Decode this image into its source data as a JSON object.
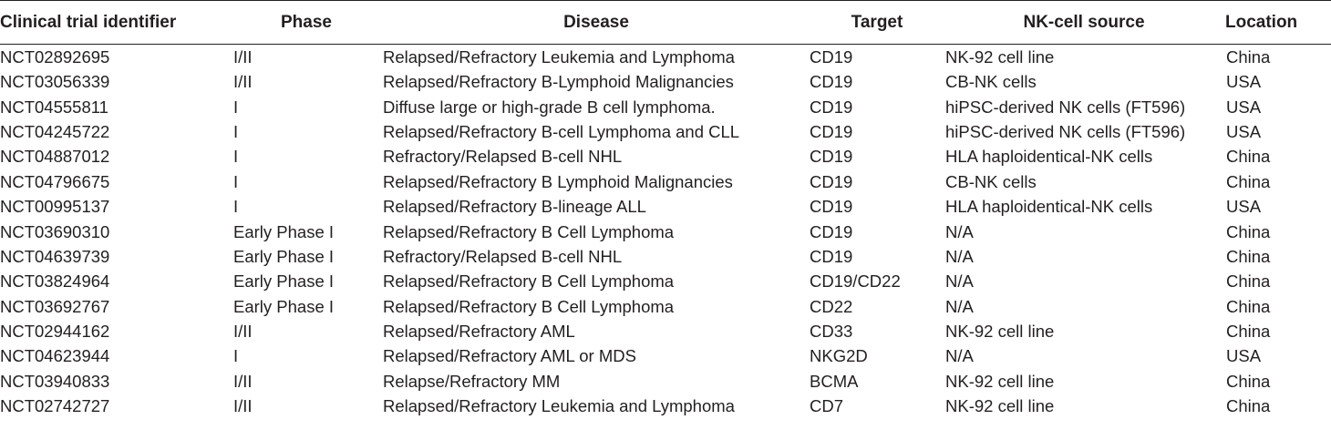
{
  "table": {
    "headers": [
      "Clinical trial identifier",
      "Phase",
      "Disease",
      "Target",
      "NK-cell source",
      "Location"
    ],
    "rows": [
      [
        "NCT02892695",
        "I/II",
        "Relapsed/Refractory Leukemia and Lymphoma",
        "CD19",
        "NK-92 cell line",
        "China"
      ],
      [
        "NCT03056339",
        "I/II",
        "Relapsed/Refractory B-Lymphoid Malignancies",
        "CD19",
        "CB-NK cells",
        "USA"
      ],
      [
        "NCT04555811",
        "I",
        "Diffuse large or high-grade B cell lymphoma.",
        "CD19",
        "hiPSC-derived NK cells (FT596)",
        "USA"
      ],
      [
        "NCT04245722",
        "I",
        "Relapsed/Refractory B-cell Lymphoma and CLL",
        "CD19",
        "hiPSC-derived NK cells (FT596)",
        "USA"
      ],
      [
        "NCT04887012",
        "I",
        "Refractory/Relapsed B-cell NHL",
        "CD19",
        "HLA haploidentical-NK cells",
        "China"
      ],
      [
        "NCT04796675",
        "I",
        "Relapsed/Refractory B Lymphoid Malignancies",
        "CD19",
        "CB-NK cells",
        "China"
      ],
      [
        "NCT00995137",
        "I",
        "Relapsed/Refractory B-lineage ALL",
        "CD19",
        "HLA haploidentical-NK cells",
        "USA"
      ],
      [
        "NCT03690310",
        "Early Phase I",
        "Relapsed/Refractory B Cell Lymphoma",
        "CD19",
        "N/A",
        "China"
      ],
      [
        "NCT04639739",
        "Early Phase I",
        "Refractory/Relapsed B-cell NHL",
        "CD19",
        "N/A",
        "China"
      ],
      [
        "NCT03824964",
        "Early Phase I",
        "Relapsed/Refractory B Cell Lymphoma",
        "CD19/CD22",
        "N/A",
        "China"
      ],
      [
        "NCT03692767",
        "Early Phase I",
        "Relapsed/Refractory B Cell Lymphoma",
        "CD22",
        "N/A",
        "China"
      ],
      [
        "NCT02944162",
        "I/II",
        "Relapsed/Refractory AML",
        "CD33",
        "NK-92 cell line",
        "China"
      ],
      [
        "NCT04623944",
        "I",
        "Relapsed/Refractory AML or MDS",
        "NKG2D",
        "N/A",
        "USA"
      ],
      [
        "NCT03940833",
        "I/II",
        "Relapse/Refractory MM",
        "BCMA",
        "NK-92 cell line",
        "China"
      ],
      [
        "NCT02742727",
        "I/II",
        "Relapsed/Refractory Leukemia and Lymphoma",
        "CD7",
        "NK-92 cell line",
        "China"
      ]
    ]
  }
}
